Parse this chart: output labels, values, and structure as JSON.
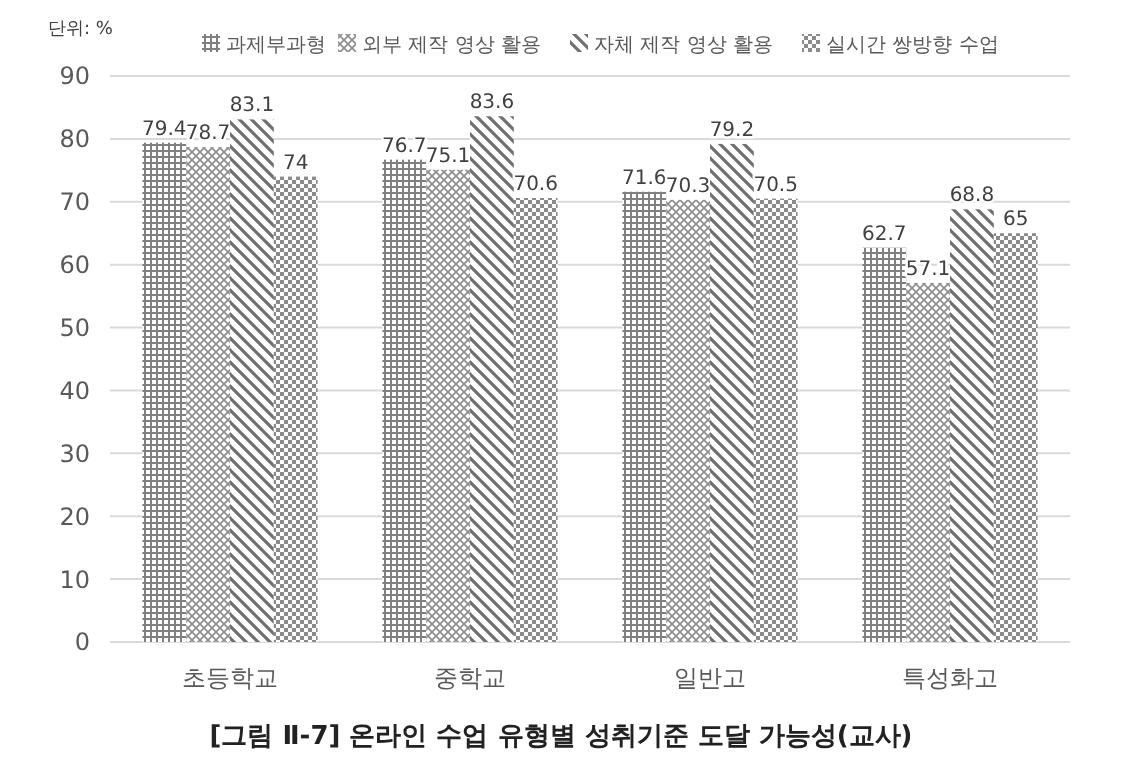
{
  "chart_data": {
    "type": "bar",
    "title": "[그림 Ⅱ-7] 온라인 수업 유형별 성취기준 도달 가능성(교사)",
    "ylabel": "단위: %",
    "categories": [
      "초등학교",
      "중학교",
      "일반고",
      "특성화고"
    ],
    "series": [
      {
        "name": "과제부과형",
        "color": "#808080",
        "values": [
          79.4,
          76.7,
          71.6,
          62.7
        ]
      },
      {
        "name": "외부 제작 영상 활용",
        "color": "#909090",
        "values": [
          78.7,
          75.1,
          70.3,
          57.1
        ]
      },
      {
        "name": "자체 제작 영상 활용",
        "color": "#707070",
        "values": [
          83.1,
          83.6,
          79.2,
          68.8
        ]
      },
      {
        "name": "실시간 쌍방향 수업",
        "color": "#8a8a8a",
        "values": [
          74,
          70.6,
          70.5,
          65
        ]
      }
    ],
    "ylim": [
      0,
      90
    ],
    "yticks": [
      0,
      10,
      20,
      30,
      40,
      50,
      60,
      70,
      80,
      90
    ],
    "grid": "y",
    "legend": "top",
    "data_labels": true
  }
}
